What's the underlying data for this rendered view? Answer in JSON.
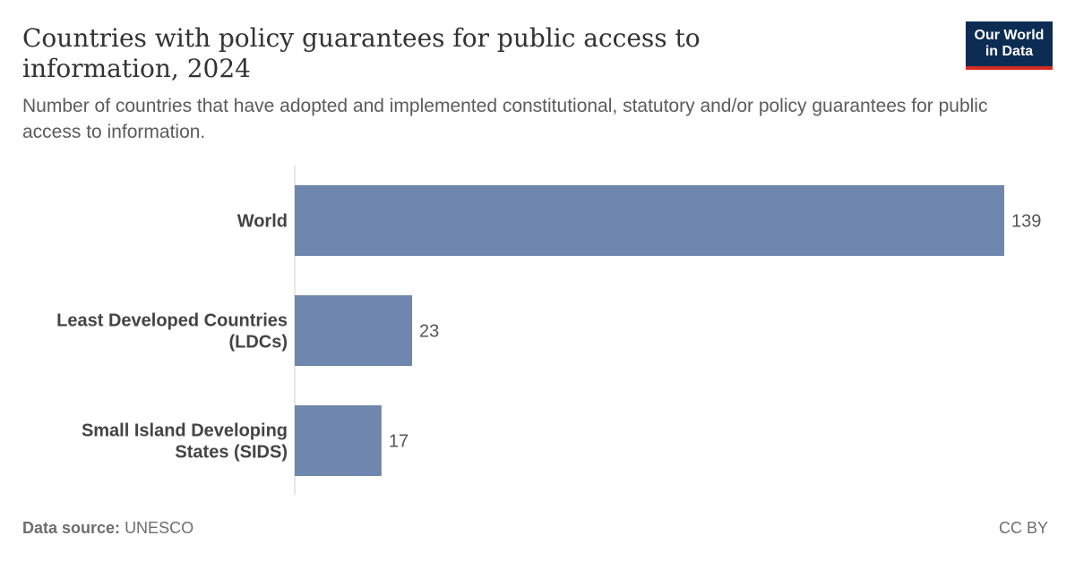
{
  "header": {
    "title": "Countries with policy guarantees for public access to information, 2024",
    "subtitle": "Number of countries that have adopted and implemented constitutional, statutory and/or policy guarantees for public access to information."
  },
  "logo": {
    "line1": "Our World",
    "line2": "in Data"
  },
  "footer": {
    "source_label": "Data source:",
    "source_value": "UNESCO",
    "license": "CC BY"
  },
  "colors": {
    "bar": "#6f87ae",
    "axis": "#cccccc",
    "label": "#444444",
    "value": "#555555"
  },
  "chart_data": {
    "type": "bar",
    "orientation": "horizontal",
    "categories": [
      [
        "World"
      ],
      [
        "Least Developed Countries",
        "(LDCs)"
      ],
      [
        "Small Island Developing",
        "States (SIDS)"
      ]
    ],
    "values": [
      139,
      23,
      17
    ],
    "xlim": [
      0,
      139
    ],
    "grid": false,
    "legend": "none"
  }
}
